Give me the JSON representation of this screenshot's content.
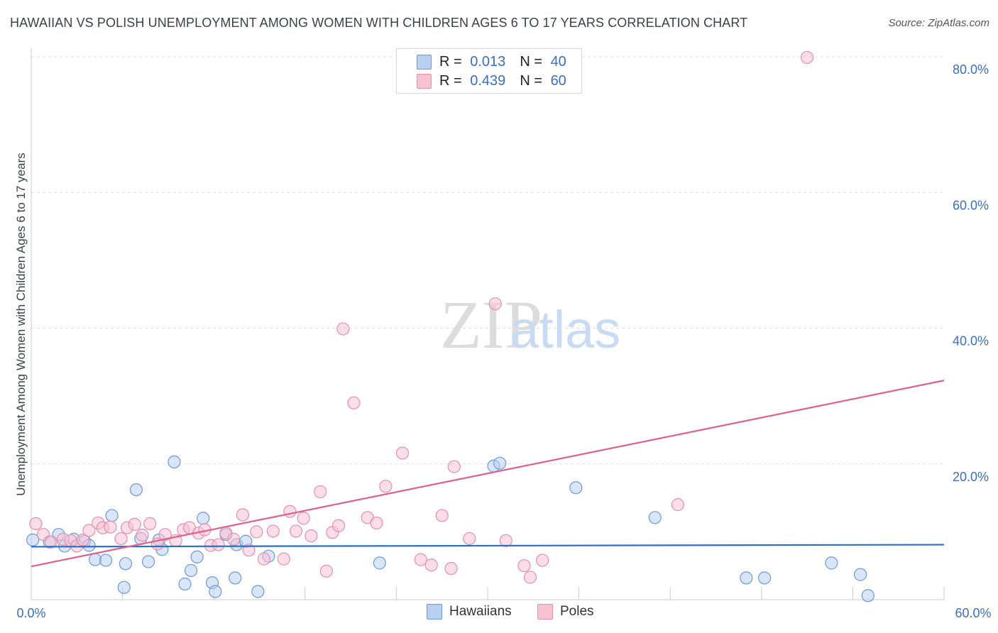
{
  "header": {
    "title": "HAWAIIAN VS POLISH UNEMPLOYMENT AMONG WOMEN WITH CHILDREN AGES 6 TO 17 YEARS CORRELATION CHART",
    "source": "Source: ZipAtlas.com"
  },
  "watermark": {
    "zip": "ZIP",
    "atlas": "atlas"
  },
  "legend_top": {
    "rows": [
      {
        "r_label": "R =",
        "r_value": "0.013",
        "n_label": "N =",
        "n_value": "40"
      },
      {
        "r_label": "R =",
        "r_value": "0.439",
        "n_label": "N =",
        "n_value": "60"
      }
    ]
  },
  "legend_bottom": {
    "hawaiians": "Hawaiians",
    "poles": "Poles"
  },
  "colors": {
    "hawaiians_fill": "#b9d0f2",
    "hawaiians_stroke": "#6c9ad8",
    "hawaiians_line": "#2b6fcc",
    "poles_fill": "#f7c3d3",
    "poles_stroke": "#e78fab",
    "poles_line": "#e0608c",
    "tick_text": "#3b6fc2",
    "grid": "#dcdfe6"
  },
  "chart_data": {
    "type": "scatter",
    "title": "HAWAIIAN VS POLISH UNEMPLOYMENT AMONG WOMEN WITH CHILDREN AGES 6 TO 17 YEARS CORRELATION CHART",
    "xlabel": "",
    "ylabel": "Unemployment Among Women with Children Ages 6 to 17 years",
    "xlim": [
      0,
      60
    ],
    "ylim": [
      0,
      80
    ],
    "x_tick_labels": [
      "0.0%",
      "60.0%"
    ],
    "y_ticks": [
      20,
      40,
      60,
      80
    ],
    "y_tick_labels": [
      "20.0%",
      "40.0%",
      "60.0%",
      "80.0%"
    ],
    "grid": true,
    "legend_position": "top-center",
    "series": [
      {
        "name": "Hawaiians",
        "r": 0.013,
        "n": 40,
        "trend": {
          "x": [
            0,
            60
          ],
          "y": [
            7.8,
            8.1
          ]
        },
        "points": [
          [
            0.1,
            8.8
          ],
          [
            1.2,
            8.5
          ],
          [
            1.8,
            9.6
          ],
          [
            2.2,
            7.9
          ],
          [
            2.8,
            8.9
          ],
          [
            3.5,
            8.6
          ],
          [
            3.8,
            8.0
          ],
          [
            4.2,
            5.9
          ],
          [
            4.9,
            5.8
          ],
          [
            5.3,
            12.4
          ],
          [
            6.1,
            1.8
          ],
          [
            6.2,
            5.3
          ],
          [
            6.9,
            16.2
          ],
          [
            7.2,
            9.0
          ],
          [
            7.7,
            5.6
          ],
          [
            8.6,
            7.4
          ],
          [
            8.4,
            8.8
          ],
          [
            9.4,
            20.3
          ],
          [
            10.1,
            2.3
          ],
          [
            10.5,
            4.3
          ],
          [
            10.9,
            6.3
          ],
          [
            11.3,
            12.0
          ],
          [
            11.9,
            2.5
          ],
          [
            12.1,
            1.2
          ],
          [
            12.8,
            9.6
          ],
          [
            13.4,
            3.2
          ],
          [
            13.5,
            8.1
          ],
          [
            14.1,
            8.6
          ],
          [
            14.9,
            1.2
          ],
          [
            15.6,
            6.4
          ],
          [
            22.9,
            5.4
          ],
          [
            30.4,
            19.7
          ],
          [
            30.8,
            20.1
          ],
          [
            35.8,
            16.5
          ],
          [
            41.0,
            12.1
          ],
          [
            47.0,
            3.2
          ],
          [
            48.2,
            3.2
          ],
          [
            52.6,
            5.4
          ],
          [
            54.5,
            3.7
          ],
          [
            55.0,
            0.6
          ]
        ]
      },
      {
        "name": "Poles",
        "r": 0.439,
        "n": 60,
        "trend": {
          "x": [
            0,
            60
          ],
          "y": [
            4.9,
            32.3
          ]
        },
        "points": [
          [
            0.3,
            11.2
          ],
          [
            0.8,
            9.6
          ],
          [
            1.3,
            8.5
          ],
          [
            2.1,
            8.9
          ],
          [
            2.6,
            8.7
          ],
          [
            3.0,
            7.9
          ],
          [
            3.4,
            8.8
          ],
          [
            3.8,
            10.2
          ],
          [
            4.4,
            11.3
          ],
          [
            4.7,
            10.6
          ],
          [
            5.2,
            10.7
          ],
          [
            5.9,
            9.0
          ],
          [
            6.3,
            10.6
          ],
          [
            6.8,
            11.1
          ],
          [
            7.3,
            9.5
          ],
          [
            7.8,
            11.2
          ],
          [
            8.3,
            8.2
          ],
          [
            8.8,
            9.6
          ],
          [
            9.5,
            8.7
          ],
          [
            10.0,
            10.3
          ],
          [
            10.4,
            10.6
          ],
          [
            11.0,
            9.8
          ],
          [
            11.4,
            10.3
          ],
          [
            11.8,
            8.0
          ],
          [
            12.3,
            8.1
          ],
          [
            12.8,
            9.8
          ],
          [
            13.3,
            8.9
          ],
          [
            13.9,
            12.5
          ],
          [
            14.3,
            7.3
          ],
          [
            14.8,
            10.0
          ],
          [
            15.3,
            6.0
          ],
          [
            15.9,
            10.1
          ],
          [
            16.6,
            6.0
          ],
          [
            17.0,
            13.0
          ],
          [
            17.4,
            10.1
          ],
          [
            17.9,
            12.0
          ],
          [
            18.4,
            9.4
          ],
          [
            19.0,
            15.9
          ],
          [
            19.4,
            4.2
          ],
          [
            19.8,
            9.9
          ],
          [
            20.2,
            10.9
          ],
          [
            20.5,
            39.9
          ],
          [
            21.2,
            29.0
          ],
          [
            22.1,
            12.1
          ],
          [
            22.7,
            11.3
          ],
          [
            23.3,
            16.7
          ],
          [
            24.4,
            21.6
          ],
          [
            25.6,
            5.9
          ],
          [
            26.3,
            5.1
          ],
          [
            27.0,
            12.4
          ],
          [
            27.6,
            4.6
          ],
          [
            27.8,
            19.6
          ],
          [
            28.8,
            9.0
          ],
          [
            30.5,
            43.6
          ],
          [
            31.2,
            8.7
          ],
          [
            32.4,
            5.0
          ],
          [
            32.8,
            3.3
          ],
          [
            33.6,
            5.8
          ],
          [
            42.5,
            14.0
          ],
          [
            51.0,
            79.9
          ]
        ]
      }
    ]
  }
}
